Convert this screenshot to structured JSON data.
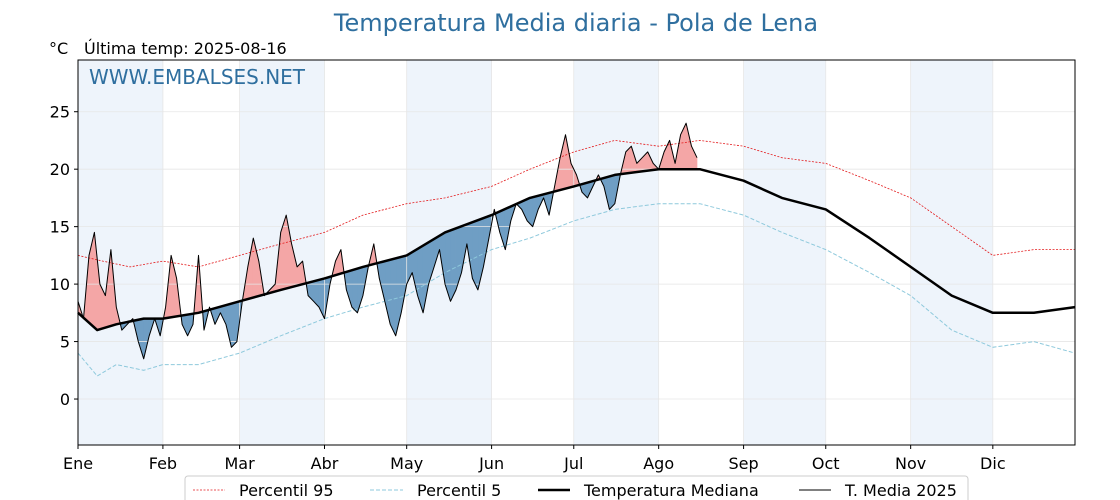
{
  "header": {
    "title": "Temperatura Media diaria - Pola de Lena",
    "unit": "°C",
    "last_temp": "Última temp: 2025-08-16",
    "watermark": "WWW.EMBALSES.NET"
  },
  "colors": {
    "title": "#2f6f9f",
    "p95": "#e31a1c",
    "p5": "#8ec9dc",
    "median": "#000000",
    "year": "#000000",
    "above_fill": "#f4a6a6",
    "below_fill": "#6f9ec4",
    "month_band": "#eef4fb"
  },
  "legend": {
    "items": [
      {
        "label": "Percentil 95",
        "style": "p95"
      },
      {
        "label": "Percentil 5",
        "style": "p5"
      },
      {
        "label": "Temperatura Mediana",
        "style": "median"
      },
      {
        "label": "T. Media 2025",
        "style": "year"
      }
    ]
  },
  "chart_data": {
    "type": "line",
    "title": "Temperatura Media diaria - Pola de Lena",
    "ylabel": "°C",
    "xlabel": "",
    "ylim": [
      -4,
      29.5
    ],
    "xlim": [
      1,
      365
    ],
    "grid": true,
    "legend_position": "bottom",
    "x_ticks": [
      {
        "label": "Ene",
        "day": 1
      },
      {
        "label": "Feb",
        "day": 32
      },
      {
        "label": "Mar",
        "day": 60
      },
      {
        "label": "Abr",
        "day": 91
      },
      {
        "label": "May",
        "day": 121
      },
      {
        "label": "Jun",
        "day": 152
      },
      {
        "label": "Jul",
        "day": 182
      },
      {
        "label": "Ago",
        "day": 213
      },
      {
        "label": "Sep",
        "day": 244
      },
      {
        "label": "Oct",
        "day": 274
      },
      {
        "label": "Nov",
        "day": 305
      },
      {
        "label": "Dic",
        "day": 335
      }
    ],
    "y_ticks": [
      0,
      5,
      10,
      15,
      20,
      25
    ],
    "shaded_months": [
      [
        1,
        32
      ],
      [
        60,
        91
      ],
      [
        121,
        152
      ],
      [
        182,
        213
      ],
      [
        244,
        274
      ],
      [
        305,
        335
      ]
    ],
    "series": [
      {
        "name": "Percentil 95",
        "key": "p95",
        "points": [
          [
            1,
            12.5
          ],
          [
            10,
            12.0
          ],
          [
            20,
            11.5
          ],
          [
            32,
            12.0
          ],
          [
            45,
            11.5
          ],
          [
            60,
            12.5
          ],
          [
            75,
            13.5
          ],
          [
            91,
            14.5
          ],
          [
            105,
            16.0
          ],
          [
            121,
            17.0
          ],
          [
            135,
            17.5
          ],
          [
            152,
            18.5
          ],
          [
            166,
            20.0
          ],
          [
            182,
            21.5
          ],
          [
            197,
            22.5
          ],
          [
            213,
            22.0
          ],
          [
            228,
            22.5
          ],
          [
            244,
            22.0
          ],
          [
            258,
            21.0
          ],
          [
            274,
            20.5
          ],
          [
            290,
            19.0
          ],
          [
            305,
            17.5
          ],
          [
            320,
            15.0
          ],
          [
            335,
            12.5
          ],
          [
            350,
            13.0
          ],
          [
            365,
            13.0
          ]
        ]
      },
      {
        "name": "Percentil 5",
        "key": "p5",
        "points": [
          [
            1,
            4.0
          ],
          [
            8,
            2.0
          ],
          [
            15,
            3.0
          ],
          [
            25,
            2.5
          ],
          [
            32,
            3.0
          ],
          [
            45,
            3.0
          ],
          [
            60,
            4.0
          ],
          [
            75,
            5.5
          ],
          [
            91,
            7.0
          ],
          [
            105,
            8.0
          ],
          [
            121,
            9.0
          ],
          [
            135,
            11.0
          ],
          [
            152,
            13.0
          ],
          [
            166,
            14.0
          ],
          [
            182,
            15.5
          ],
          [
            197,
            16.5
          ],
          [
            213,
            17.0
          ],
          [
            228,
            17.0
          ],
          [
            244,
            16.0
          ],
          [
            258,
            14.5
          ],
          [
            274,
            13.0
          ],
          [
            290,
            11.0
          ],
          [
            305,
            9.0
          ],
          [
            320,
            6.0
          ],
          [
            335,
            4.5
          ],
          [
            350,
            5.0
          ],
          [
            365,
            4.0
          ]
        ]
      },
      {
        "name": "Temperatura Mediana",
        "key": "median",
        "points": [
          [
            1,
            7.5
          ],
          [
            8,
            6.0
          ],
          [
            15,
            6.5
          ],
          [
            25,
            7.0
          ],
          [
            32,
            7.0
          ],
          [
            45,
            7.5
          ],
          [
            60,
            8.5
          ],
          [
            75,
            9.5
          ],
          [
            91,
            10.5
          ],
          [
            105,
            11.5
          ],
          [
            121,
            12.5
          ],
          [
            135,
            14.5
          ],
          [
            152,
            16.0
          ],
          [
            166,
            17.5
          ],
          [
            182,
            18.5
          ],
          [
            197,
            19.5
          ],
          [
            213,
            20.0
          ],
          [
            228,
            20.0
          ],
          [
            244,
            19.0
          ],
          [
            258,
            17.5
          ],
          [
            274,
            16.5
          ],
          [
            290,
            14.0
          ],
          [
            305,
            11.5
          ],
          [
            320,
            9.0
          ],
          [
            335,
            7.5
          ],
          [
            350,
            7.5
          ],
          [
            365,
            8.0
          ]
        ]
      },
      {
        "name": "T. Media 2025",
        "key": "year",
        "points": [
          [
            1,
            8.5
          ],
          [
            3,
            7.0
          ],
          [
            5,
            12.5
          ],
          [
            7,
            14.5
          ],
          [
            9,
            10.0
          ],
          [
            11,
            9.0
          ],
          [
            13,
            13.0
          ],
          [
            15,
            8.0
          ],
          [
            17,
            6.0
          ],
          [
            19,
            6.5
          ],
          [
            21,
            7.0
          ],
          [
            23,
            5.0
          ],
          [
            25,
            3.5
          ],
          [
            27,
            5.5
          ],
          [
            29,
            7.0
          ],
          [
            31,
            5.5
          ],
          [
            33,
            8.0
          ],
          [
            35,
            12.5
          ],
          [
            37,
            10.5
          ],
          [
            39,
            6.5
          ],
          [
            41,
            5.5
          ],
          [
            43,
            6.5
          ],
          [
            45,
            12.5
          ],
          [
            47,
            6.0
          ],
          [
            49,
            8.0
          ],
          [
            51,
            6.5
          ],
          [
            53,
            7.5
          ],
          [
            55,
            6.5
          ],
          [
            57,
            4.5
          ],
          [
            59,
            5.0
          ],
          [
            61,
            8.5
          ],
          [
            63,
            11.5
          ],
          [
            65,
            14.0
          ],
          [
            67,
            12.0
          ],
          [
            69,
            9.0
          ],
          [
            71,
            9.5
          ],
          [
            73,
            10.0
          ],
          [
            75,
            14.5
          ],
          [
            77,
            16.0
          ],
          [
            79,
            13.5
          ],
          [
            81,
            11.5
          ],
          [
            83,
            12.0
          ],
          [
            85,
            9.0
          ],
          [
            87,
            8.5
          ],
          [
            89,
            8.0
          ],
          [
            91,
            7.0
          ],
          [
            93,
            10.0
          ],
          [
            95,
            12.0
          ],
          [
            97,
            13.0
          ],
          [
            99,
            9.5
          ],
          [
            101,
            8.0
          ],
          [
            103,
            7.5
          ],
          [
            105,
            9.0
          ],
          [
            107,
            11.5
          ],
          [
            109,
            13.5
          ],
          [
            111,
            10.5
          ],
          [
            113,
            8.5
          ],
          [
            115,
            6.5
          ],
          [
            117,
            5.5
          ],
          [
            119,
            7.5
          ],
          [
            121,
            10.0
          ],
          [
            123,
            11.0
          ],
          [
            125,
            9.0
          ],
          [
            127,
            7.5
          ],
          [
            129,
            10.0
          ],
          [
            131,
            11.5
          ],
          [
            133,
            13.0
          ],
          [
            135,
            10.0
          ],
          [
            137,
            8.5
          ],
          [
            139,
            9.5
          ],
          [
            141,
            11.0
          ],
          [
            143,
            13.5
          ],
          [
            145,
            10.5
          ],
          [
            147,
            9.5
          ],
          [
            149,
            11.5
          ],
          [
            151,
            14.0
          ],
          [
            153,
            16.5
          ],
          [
            155,
            14.5
          ],
          [
            157,
            13.0
          ],
          [
            159,
            15.5
          ],
          [
            161,
            17.0
          ],
          [
            163,
            16.5
          ],
          [
            165,
            15.5
          ],
          [
            167,
            15.0
          ],
          [
            169,
            16.5
          ],
          [
            171,
            17.5
          ],
          [
            173,
            16.0
          ],
          [
            175,
            18.5
          ],
          [
            177,
            21.0
          ],
          [
            179,
            23.0
          ],
          [
            181,
            20.5
          ],
          [
            183,
            19.5
          ],
          [
            185,
            18.0
          ],
          [
            187,
            17.5
          ],
          [
            189,
            18.5
          ],
          [
            191,
            19.5
          ],
          [
            193,
            18.5
          ],
          [
            195,
            16.5
          ],
          [
            197,
            17.0
          ],
          [
            199,
            19.5
          ],
          [
            201,
            21.5
          ],
          [
            203,
            22.0
          ],
          [
            205,
            20.5
          ],
          [
            207,
            21.0
          ],
          [
            209,
            21.5
          ],
          [
            211,
            20.5
          ],
          [
            213,
            20.0
          ],
          [
            215,
            21.5
          ],
          [
            217,
            22.5
          ],
          [
            219,
            20.5
          ],
          [
            221,
            23.0
          ],
          [
            223,
            24.0
          ],
          [
            225,
            22.0
          ],
          [
            227,
            21.0
          ]
        ]
      }
    ]
  }
}
